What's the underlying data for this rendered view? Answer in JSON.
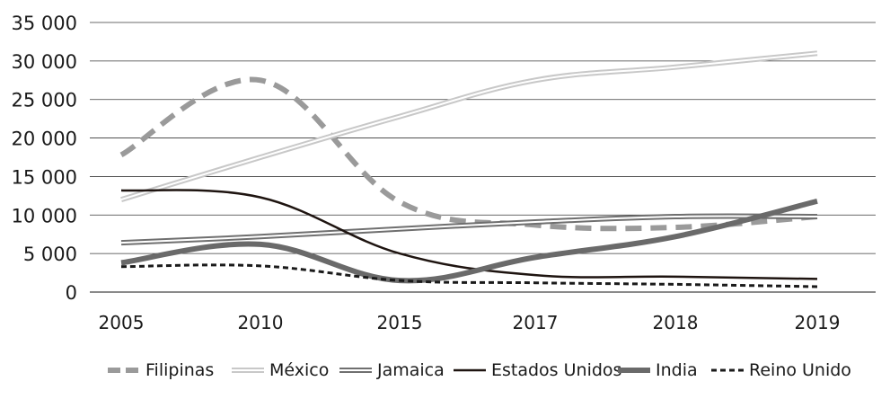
{
  "chart_data": {
    "type": "line",
    "title": "",
    "xlabel": "",
    "ylabel": "",
    "categories": [
      "2005",
      "2010",
      "2015",
      "2017",
      "2018",
      "2019"
    ],
    "ylim": [
      0,
      35000
    ],
    "yticks": [
      0,
      5000,
      10000,
      15000,
      20000,
      25000,
      30000,
      35000
    ],
    "ytick_labels": [
      "0",
      "5 000",
      "10 000",
      "15 000",
      "20 000",
      "25 000",
      "30 000",
      "35 000"
    ],
    "grid": "horizontal",
    "legend_position": "bottom",
    "series": [
      {
        "name": "Filipinas",
        "values": [
          17800,
          27500,
          11700,
          8700,
          8400,
          9800
        ],
        "color": "#9a9a9a",
        "style": "dashed"
      },
      {
        "name": "México",
        "values": [
          12000,
          17500,
          22800,
          27500,
          29200,
          31000
        ],
        "color": "#c8c8c8",
        "style": "double"
      },
      {
        "name": "Jamaica",
        "values": [
          6400,
          7200,
          8200,
          9100,
          9800,
          9800
        ],
        "color": "#6f6f6f",
        "style": "double"
      },
      {
        "name": "Estados Unidos",
        "values": [
          13200,
          12300,
          5000,
          2200,
          2000,
          1700
        ],
        "color": "#1e1410",
        "style": "solid"
      },
      {
        "name": "India",
        "values": [
          3800,
          6200,
          1500,
          4500,
          7200,
          11800
        ],
        "color": "#6a6a6a",
        "style": "thick"
      },
      {
        "name": "Reino Unido",
        "values": [
          3300,
          3400,
          1500,
          1200,
          1000,
          700
        ],
        "color": "#1a1a1a",
        "style": "dotted"
      }
    ]
  }
}
